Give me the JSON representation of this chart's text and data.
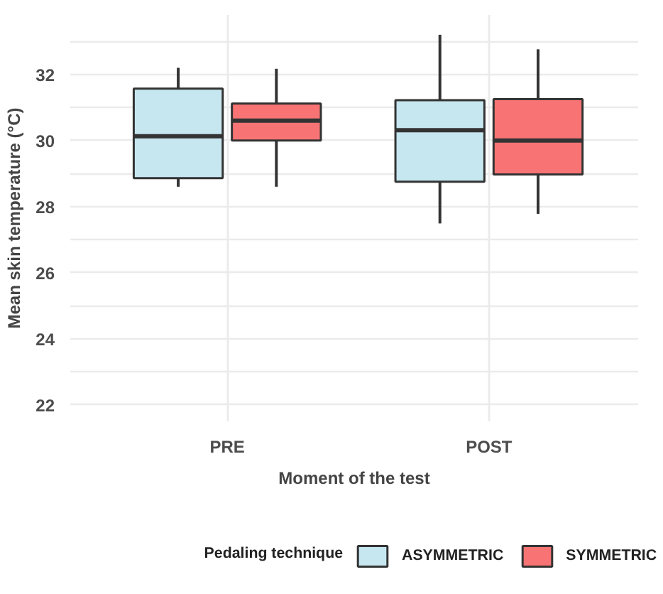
{
  "chart_data": {
    "type": "box",
    "xlabel": "Moment of the test",
    "ylabel": "Mean skin temperature (°C)",
    "legend_title": "Pedaling technique",
    "categories": [
      "PRE",
      "POST"
    ],
    "ylim": [
      21.5,
      33.8
    ],
    "yticks": [
      22,
      {
        "value": 23,
        "label": null
      },
      24,
      {
        "value": 25,
        "label": null
      },
      26,
      {
        "value": 27,
        "label": null
      },
      28,
      {
        "value": 29,
        "label": null
      },
      30,
      {
        "value": 31,
        "label": null
      },
      32,
      {
        "value": 33,
        "label": null
      }
    ],
    "grid": true,
    "legend": "bottom",
    "series": [
      {
        "name": "ASYMMETRIC",
        "color": "#c6e6f0",
        "boxes": [
          {
            "low": 28.6,
            "q1": 28.86,
            "median": 30.13,
            "q3": 31.57,
            "high": 32.2
          },
          {
            "low": 27.49,
            "q1": 28.75,
            "median": 30.31,
            "q3": 31.22,
            "high": 33.2
          }
        ]
      },
      {
        "name": "SYMMETRIC",
        "color": "#f87474",
        "boxes": [
          {
            "low": 28.6,
            "q1": 30.0,
            "median": 30.6,
            "q3": 31.12,
            "high": 32.17
          },
          {
            "low": 27.78,
            "q1": 28.97,
            "median": 30.0,
            "q3": 31.25,
            "high": 32.76
          }
        ]
      }
    ]
  }
}
